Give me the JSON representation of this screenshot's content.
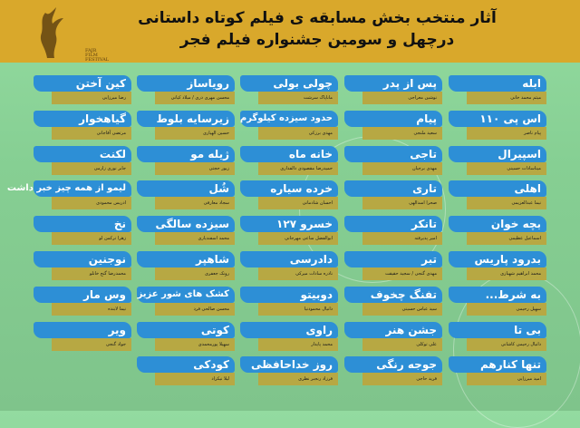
{
  "header": {
    "title_line1": "آثار منتخب بخش مسابقه ی فیلم کوتاه داستانی",
    "title_line2": "درچهل و سومین جشنواره فیلم فجر",
    "logo_text": "FAJR FILM FESTIVAL"
  },
  "colors": {
    "header": "#d9a82b",
    "title_bar": "#2d8fd6",
    "director_bar": "#b7a843",
    "background": "#8fd49a"
  },
  "columns": [
    [
      {
        "title": "ابله",
        "director": "میثم محمد خانی"
      },
      {
        "title": "اس پی ۱۱۰",
        "director": "پیام ناصر"
      },
      {
        "title": "اسپیرال",
        "director": "میناسادات حسینی"
      },
      {
        "title": "اهلی",
        "director": "نیما عبدالعزیمی"
      },
      {
        "title": "بچه خوان",
        "director": "اسماعیل عظیمی"
      },
      {
        "title": "بدرود پاریس",
        "director": "محمد ابراهیم شهبازی"
      },
      {
        "title": "به شرط...",
        "director": "سهیل رحیمی"
      },
      {
        "title": "بی تا",
        "director": "دانیال رحیمی کاشانی"
      },
      {
        "title": "تنها کنارهم",
        "director": "امید میرزایی"
      }
    ],
    [
      {
        "title": "پس از پدر",
        "director": "نوشین معراجی"
      },
      {
        "title": "پیام",
        "director": "سعید ملنجی"
      },
      {
        "title": "تاجی",
        "director": "مهدی برجیان"
      },
      {
        "title": "تاری",
        "director": "صحرا اسدالهی"
      },
      {
        "title": "تانکر",
        "director": "امیر پذیرفته"
      },
      {
        "title": "تبر",
        "director": "مهدی گنجی / سجید حقیقت"
      },
      {
        "title": "تفنگ چخوف",
        "director": "سید عباس حسینی"
      },
      {
        "title": "جشن هنر",
        "director": "علی توکلی"
      },
      {
        "title": "جوجه رنگی",
        "director": "فرید حاجی"
      }
    ],
    [
      {
        "title": "چولی بولی",
        "director": "ماناپاک سرشت"
      },
      {
        "title": "حدود سیزده کیلوگرم",
        "director": "مهدی برزکی"
      },
      {
        "title": "خانه ماه",
        "director": "حمیدرضا مقصودی دالفداری"
      },
      {
        "title": "خرده سیاره",
        "director": "احسان شادمانی"
      },
      {
        "title": "خسرو ۱۲۷",
        "director": "ابوالفضل ساعی مهرجانی"
      },
      {
        "title": "دادرسی",
        "director": "نادره سادات میرکی"
      },
      {
        "title": "دوبیتو",
        "director": "دانیال محمودنیا"
      },
      {
        "title": "راوی",
        "director": "محمد پایدار"
      },
      {
        "title": "روز خداحافظی",
        "director": "فرزاد رنجبر نظری"
      }
    ],
    [
      {
        "title": "رویاساز",
        "director": "محسن مهری دری / میلاد کیانی"
      },
      {
        "title": "زیرسایه بلوط",
        "director": "حسین الهیاری"
      },
      {
        "title": "ژیله مو",
        "director": "زیور حجتی"
      },
      {
        "title": "شُل",
        "director": "سجاد معارفی"
      },
      {
        "title": "سیزده سالگی",
        "director": "محمد اسفندیاری"
      },
      {
        "title": "شاهپر",
        "director": "رونک جعفری"
      },
      {
        "title": "کشک های شور عزیز",
        "director": "محسن صالحی فرد"
      },
      {
        "title": "کوتی",
        "director": "سهیلا پورمحمدی"
      },
      {
        "title": "کودکی",
        "director": "لیلا نیکزاد"
      }
    ],
    [
      {
        "title": "کین آختن",
        "director": "رضا میرزایی"
      },
      {
        "title": "گیاهخوار",
        "director": "مرتضی آقاجانی"
      },
      {
        "title": "لکنت",
        "director": "جابر نوری زارمی"
      },
      {
        "title": "لیمو از همه چیز خبر داشت",
        "director": "ادریس محمودی"
      },
      {
        "title": "نخ",
        "director": "زهرا ترکمن لو"
      },
      {
        "title": "نوجنین",
        "director": "محمدرضا گنج خانلو"
      },
      {
        "title": "وس مار",
        "director": "نیما لابنده"
      },
      {
        "title": "ویر",
        "director": "جواد گنجی"
      }
    ]
  ]
}
